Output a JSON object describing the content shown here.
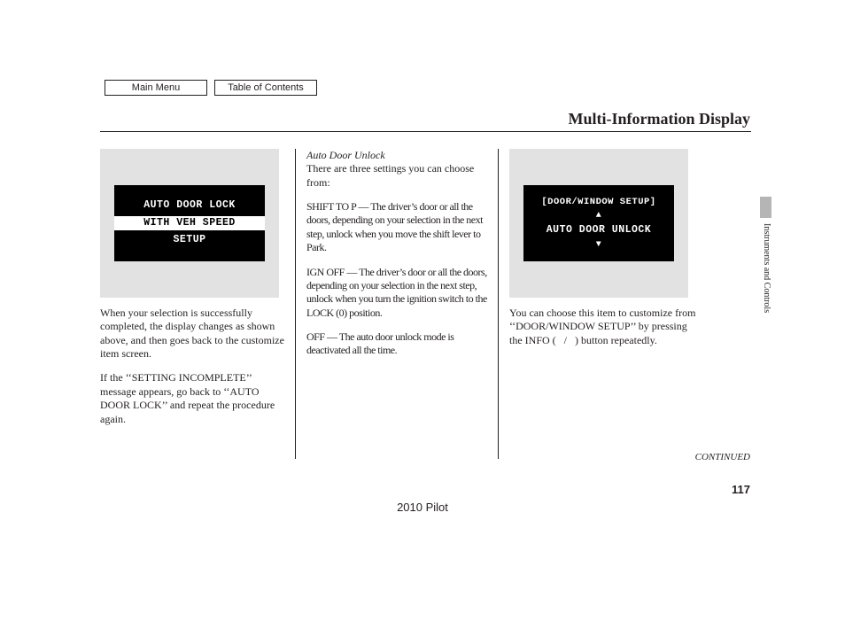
{
  "nav": {
    "main_menu": {
      "label": "Main Menu",
      "width": 116
    },
    "toc": {
      "label": "Table of Contents",
      "width": 116
    }
  },
  "page_title": "Multi-Information Display",
  "side_label": "Instruments and Controls",
  "column1": {
    "screen": {
      "line1": "AUTO DOOR LOCK",
      "line2_highlight": "WITH VEH SPEED",
      "line3": "SETUP"
    },
    "p1": "When your selection is successfully completed, the display changes as shown above, and then goes back to the customize item screen.",
    "p2": "If the ‘‘SETTING INCOMPLETE’’ message appears, go back to ‘‘AUTO DOOR LOCK’’ and repeat the procedure again."
  },
  "column2": {
    "subtitle": "Auto Door Unlock",
    "intro": "There are three settings you can choose from:",
    "opt1": "SHIFT TO P — The driver’s door or all the doors, depending on your selection in the next step, unlock when you move the shift lever to Park.",
    "opt2": "IGN OFF — The driver’s door or all the doors, depending on your selection in the next step, unlock when you turn the ignition switch to the LOCK (0) position.",
    "opt3": "OFF — The auto door unlock mode is deactivated all the time."
  },
  "column3": {
    "screen": {
      "header": "[DOOR/WINDOW SETUP]",
      "line": "AUTO DOOR UNLOCK"
    },
    "p1": "You can choose this item to customize from ‘‘DOOR/WINDOW SETUP’’ by pressing the INFO (   /   ) button repeatedly."
  },
  "continued": "CONTINUED",
  "page_number": "117",
  "footer_model": "2010 Pilot",
  "colors": {
    "screen_bg": "#000000",
    "screen_fg": "#ffffff",
    "display_bg": "#e2e2e2",
    "tab_bg": "#b5b5b5",
    "text": "#231f20"
  }
}
